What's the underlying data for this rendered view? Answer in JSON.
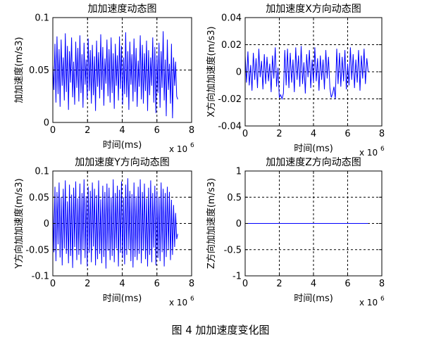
{
  "figure_caption": "图 4  加加速度变化图",
  "colors": {
    "series": "#0000ff",
    "axis": "#000000",
    "grid": "#000000"
  },
  "chart_data": [
    {
      "type": "line",
      "title": "加加速度动态图",
      "xlabel": "时间(ms)",
      "ylabel": "加加速度(m/s3)",
      "x_exponent": "x 10",
      "x_exponent_power": "6",
      "xlim": [
        0,
        8
      ],
      "ylim": [
        0,
        0.1
      ],
      "xticks": [
        "0",
        "2",
        "4",
        "6",
        "8"
      ],
      "yticks": [
        "0",
        "0.05",
        "0.1"
      ],
      "ytick_values": [
        0,
        0.05,
        0.1
      ],
      "grid": true,
      "series": [
        {
          "x": [
            0.0,
            0.06,
            0.12,
            0.18,
            0.24,
            0.3,
            0.36,
            0.42,
            0.48,
            0.54,
            0.6,
            0.66,
            0.72,
            0.78,
            0.84,
            0.9,
            0.96,
            1.02,
            1.08,
            1.14,
            1.2,
            1.26,
            1.32,
            1.38,
            1.44,
            1.5,
            1.56,
            1.62,
            1.68,
            1.74,
            1.8,
            1.86,
            1.92,
            1.98,
            2.04,
            2.1,
            2.16,
            2.22,
            2.28,
            2.34,
            2.4,
            2.46,
            2.52,
            2.58,
            2.64,
            2.7,
            2.76,
            2.82,
            2.88,
            2.94,
            3.0,
            3.06,
            3.12,
            3.18,
            3.24,
            3.3,
            3.36,
            3.42,
            3.48,
            3.54,
            3.6,
            3.66,
            3.72,
            3.78,
            3.84,
            3.9,
            3.96,
            4.02,
            4.08,
            4.14,
            4.2,
            4.26,
            4.32,
            4.38,
            4.44,
            4.5,
            4.56,
            4.62,
            4.68,
            4.74,
            4.8,
            4.86,
            4.92,
            4.98,
            5.04,
            5.1,
            5.16,
            5.22,
            5.28,
            5.34,
            5.4,
            5.46,
            5.52,
            5.58,
            5.64,
            5.7,
            5.76,
            5.82,
            5.88,
            5.94,
            6.0,
            6.06,
            6.12,
            6.18,
            6.24,
            6.3,
            6.36,
            6.42,
            6.48,
            6.54,
            6.6,
            6.66,
            6.72,
            6.78,
            6.84,
            6.9,
            6.96,
            7.02,
            7.08,
            7.14,
            7.2
          ],
          "y": [
            0.055,
            0.031,
            0.075,
            0.019,
            0.082,
            0.027,
            0.07,
            0.015,
            0.079,
            0.035,
            0.062,
            0.021,
            0.085,
            0.029,
            0.073,
            0.012,
            0.068,
            0.038,
            0.081,
            0.024,
            0.058,
            0.017,
            0.077,
            0.033,
            0.071,
            0.02,
            0.083,
            0.028,
            0.065,
            0.014,
            0.076,
            0.036,
            0.06,
            0.022,
            0.08,
            0.03,
            0.069,
            0.018,
            0.074,
            0.026,
            0.063,
            0.011,
            0.078,
            0.034,
            0.067,
            0.023,
            0.084,
            0.031,
            0.072,
            0.016,
            0.061,
            0.037,
            0.079,
            0.025,
            0.07,
            0.019,
            0.081,
            0.028,
            0.066,
            0.013,
            0.075,
            0.035,
            0.064,
            0.021,
            0.082,
            0.032,
            0.073,
            0.017,
            0.062,
            0.027,
            0.086,
            0.024,
            0.068,
            0.012,
            0.077,
            0.036,
            0.065,
            0.02,
            0.08,
            0.029,
            0.071,
            0.015,
            0.059,
            0.034,
            0.083,
            0.022,
            0.074,
            0.018,
            0.066,
            0.03,
            0.078,
            0.011,
            0.069,
            0.026,
            0.062,
            0.035,
            0.081,
            0.019,
            0.072,
            0.009,
            0.064,
            0.028,
            0.076,
            0.014,
            0.068,
            0.033,
            0.087,
            0.021,
            0.06,
            0.006,
            0.079,
            0.031,
            0.056,
            0.018,
            0.075,
            0.004,
            0.062,
            0.035,
            0.058,
            0.025,
            0.022
          ]
        }
      ]
    },
    {
      "type": "line",
      "title": "加加速度X方向动态图",
      "xlabel": "时间(ms)",
      "ylabel": "X方向加加速度(m/s3)",
      "x_exponent": "x 10",
      "x_exponent_power": "6",
      "xlim": [
        0,
        8
      ],
      "ylim": [
        -0.04,
        0.04
      ],
      "xticks": [
        "0",
        "2",
        "4",
        "6",
        "8"
      ],
      "yticks": [
        "-0.04",
        "-0.02",
        "0",
        "0.02",
        "0.04"
      ],
      "ytick_values": [
        -0.04,
        -0.02,
        0,
        0.02,
        0.04
      ],
      "grid": true,
      "series": [
        {
          "x": [
            0.0,
            0.08,
            0.16,
            0.24,
            0.32,
            0.4,
            0.48,
            0.56,
            0.64,
            0.72,
            0.8,
            0.88,
            0.96,
            1.04,
            1.12,
            1.2,
            1.28,
            1.36,
            1.44,
            1.52,
            1.6,
            1.68,
            1.76,
            1.84,
            1.92,
            2.0,
            2.08,
            2.16,
            2.24,
            2.32,
            2.4,
            2.48,
            2.56,
            2.64,
            2.72,
            2.8,
            2.88,
            2.96,
            3.04,
            3.12,
            3.2,
            3.28,
            3.36,
            3.44,
            3.52,
            3.6,
            3.68,
            3.76,
            3.84,
            3.92,
            4.0,
            4.08,
            4.16,
            4.24,
            4.32,
            4.4,
            4.48,
            4.56,
            4.64,
            4.72,
            4.8,
            4.88,
            4.96,
            5.04,
            5.12,
            5.2,
            5.28,
            5.36,
            5.44,
            5.52,
            5.6,
            5.68,
            5.76,
            5.84,
            5.92,
            6.0,
            6.08,
            6.16,
            6.24,
            6.32,
            6.4,
            6.48,
            6.56,
            6.64,
            6.72,
            6.8,
            6.88,
            6.96,
            7.04,
            7.12,
            7.2
          ],
          "y": [
            0.012,
            -0.008,
            0.015,
            -0.01,
            0.005,
            -0.014,
            0.014,
            -0.006,
            0.01,
            -0.012,
            0.017,
            -0.004,
            0.008,
            -0.013,
            0.013,
            -0.009,
            0.011,
            -0.007,
            0.006,
            -0.015,
            0.012,
            -0.005,
            0.018,
            -0.011,
            0.003,
            -0.019,
            -0.017,
            -0.02,
            -0.016,
            0.016,
            -0.01,
            0.017,
            -0.012,
            0.014,
            -0.008,
            0.009,
            -0.015,
            0.018,
            -0.006,
            0.012,
            -0.011,
            0.019,
            -0.009,
            0.007,
            -0.016,
            0.013,
            -0.004,
            0.016,
            -0.012,
            0.009,
            -0.008,
            0.018,
            -0.007,
            0.01,
            -0.014,
            0.012,
            -0.006,
            0.009,
            -0.013,
            0.016,
            -0.005,
            0.011,
            -0.012,
            -0.019,
            -0.016,
            -0.011,
            -0.02,
            0.017,
            -0.009,
            0.014,
            -0.011,
            0.011,
            -0.007,
            0.016,
            -0.013,
            0.006,
            -0.01,
            0.018,
            -0.006,
            0.013,
            -0.012,
            0.009,
            -0.008,
            0.016,
            -0.014,
            0.012,
            -0.005,
            0.017,
            -0.009,
            0.01,
            0.0
          ]
        }
      ]
    },
    {
      "type": "line",
      "title": "加加速度Y方向动态图",
      "xlabel": "时间(ms)",
      "ylabel": "Y方向加加速度(m/s3)",
      "x_exponent": "x 10",
      "x_exponent_power": "6",
      "xlim": [
        0,
        8
      ],
      "ylim": [
        -0.1,
        0.1
      ],
      "xticks": [
        "0",
        "2",
        "4",
        "6",
        "8"
      ],
      "yticks": [
        "-0.1",
        "-0.05",
        "0",
        "0.05",
        "0.1"
      ],
      "ytick_values": [
        -0.1,
        -0.05,
        0,
        0.05,
        0.1
      ],
      "grid": true,
      "series": [
        {
          "x": [
            0.0,
            0.06,
            0.12,
            0.18,
            0.24,
            0.3,
            0.36,
            0.42,
            0.48,
            0.54,
            0.6,
            0.66,
            0.72,
            0.78,
            0.84,
            0.9,
            0.96,
            1.02,
            1.08,
            1.14,
            1.2,
            1.26,
            1.32,
            1.38,
            1.44,
            1.5,
            1.56,
            1.62,
            1.68,
            1.74,
            1.8,
            1.86,
            1.92,
            1.98,
            2.04,
            2.1,
            2.16,
            2.22,
            2.28,
            2.34,
            2.4,
            2.46,
            2.52,
            2.58,
            2.64,
            2.7,
            2.76,
            2.82,
            2.88,
            2.94,
            3.0,
            3.06,
            3.12,
            3.18,
            3.24,
            3.3,
            3.36,
            3.42,
            3.48,
            3.54,
            3.6,
            3.66,
            3.72,
            3.78,
            3.84,
            3.9,
            3.96,
            4.02,
            4.08,
            4.14,
            4.2,
            4.26,
            4.32,
            4.38,
            4.44,
            4.5,
            4.56,
            4.62,
            4.68,
            4.74,
            4.8,
            4.86,
            4.92,
            4.98,
            5.04,
            5.1,
            5.16,
            5.22,
            5.28,
            5.34,
            5.4,
            5.46,
            5.52,
            5.58,
            5.64,
            5.7,
            5.76,
            5.82,
            5.88,
            5.94,
            6.0,
            6.06,
            6.12,
            6.18,
            6.24,
            6.3,
            6.36,
            6.42,
            6.48,
            6.54,
            6.6,
            6.66,
            6.72,
            6.78,
            6.84,
            6.9,
            6.96,
            7.02,
            7.08,
            7.14,
            7.2
          ],
          "y": [
            0.045,
            -0.055,
            0.07,
            -0.072,
            0.06,
            -0.04,
            0.078,
            -0.065,
            0.05,
            -0.08,
            0.066,
            -0.048,
            0.082,
            -0.058,
            0.042,
            -0.076,
            0.074,
            -0.062,
            0.055,
            -0.085,
            0.068,
            -0.045,
            0.08,
            -0.07,
            0.048,
            -0.06,
            0.076,
            -0.078,
            0.058,
            -0.05,
            0.084,
            -0.066,
            0.052,
            -0.082,
            0.07,
            -0.056,
            0.062,
            -0.074,
            0.078,
            -0.044,
            0.066,
            -0.08,
            0.054,
            -0.068,
            0.082,
            -0.058,
            0.046,
            -0.076,
            0.072,
            -0.064,
            0.06,
            -0.086,
            0.076,
            -0.052,
            0.068,
            -0.07,
            0.05,
            -0.062,
            0.084,
            -0.074,
            0.058,
            -0.048,
            0.072,
            -0.082,
            0.064,
            -0.056,
            0.08,
            -0.066,
            0.05,
            -0.078,
            0.074,
            -0.06,
            0.086,
            -0.05,
            0.062,
            -0.072,
            0.056,
            -0.084,
            0.078,
            -0.064,
            0.052,
            -0.07,
            0.07,
            -0.058,
            0.084,
            -0.076,
            0.06,
            -0.052,
            0.076,
            -0.068,
            0.048,
            -0.082,
            0.068,
            -0.06,
            0.082,
            -0.074,
            0.058,
            -0.046,
            0.072,
            -0.08,
            0.062,
            -0.066,
            0.05,
            -0.072,
            0.078,
            -0.055,
            0.066,
            -0.082,
            0.058,
            -0.064,
            0.07,
            -0.05,
            0.06,
            -0.07,
            0.045,
            -0.06,
            0.035,
            -0.045,
            0.02,
            -0.03,
            -0.02
          ]
        }
      ]
    },
    {
      "type": "line",
      "title": "加加速度Z方向动态图",
      "xlabel": "时间(ms)",
      "ylabel": "Z方向加加速度(m/s3)",
      "x_exponent": "x 10",
      "x_exponent_power": "6",
      "xlim": [
        0,
        8
      ],
      "ylim": [
        -1,
        1
      ],
      "xticks": [
        "0",
        "2",
        "4",
        "6",
        "8"
      ],
      "yticks": [
        "-1",
        "-0.5",
        "0",
        "0.5",
        "1"
      ],
      "ytick_values": [
        -1,
        -0.5,
        0,
        0.5,
        1
      ],
      "grid": true,
      "series": [
        {
          "x": [
            0,
            7.2
          ],
          "y": [
            0,
            0
          ]
        }
      ]
    }
  ]
}
